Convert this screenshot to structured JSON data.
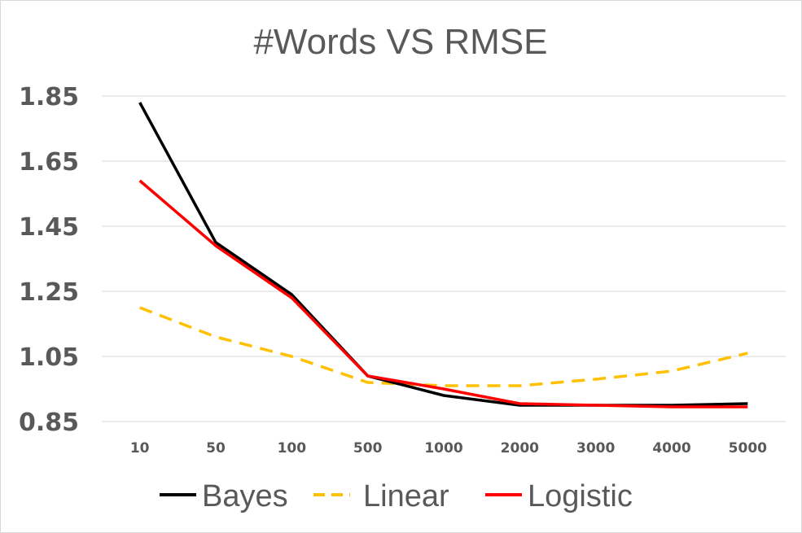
{
  "chart_data": {
    "type": "line",
    "title": "#Words VS RMSE",
    "xlabel": "",
    "ylabel": "",
    "categories": [
      "10",
      "50",
      "100",
      "500",
      "1000",
      "2000",
      "3000",
      "4000",
      "5000"
    ],
    "yticks": [
      "0.85",
      "1.05",
      "1.25",
      "1.45",
      "1.65",
      "1.85"
    ],
    "ylim": [
      0.85,
      1.85
    ],
    "grid": true,
    "legend_position": "bottom",
    "series": [
      {
        "name": "Bayes",
        "color": "#000000",
        "dash": "solid",
        "values": [
          1.83,
          1.4,
          1.24,
          0.99,
          0.93,
          0.9,
          0.9,
          0.9,
          0.905
        ]
      },
      {
        "name": "Linear",
        "color": "#ffc000",
        "dash": "dashed",
        "values": [
          1.2,
          1.11,
          1.05,
          0.97,
          0.96,
          0.96,
          0.98,
          1.005,
          1.06
        ]
      },
      {
        "name": "Logistic",
        "color": "#ff0000",
        "dash": "solid",
        "values": [
          1.59,
          1.39,
          1.23,
          0.99,
          0.95,
          0.905,
          0.9,
          0.895,
          0.895
        ]
      }
    ]
  }
}
